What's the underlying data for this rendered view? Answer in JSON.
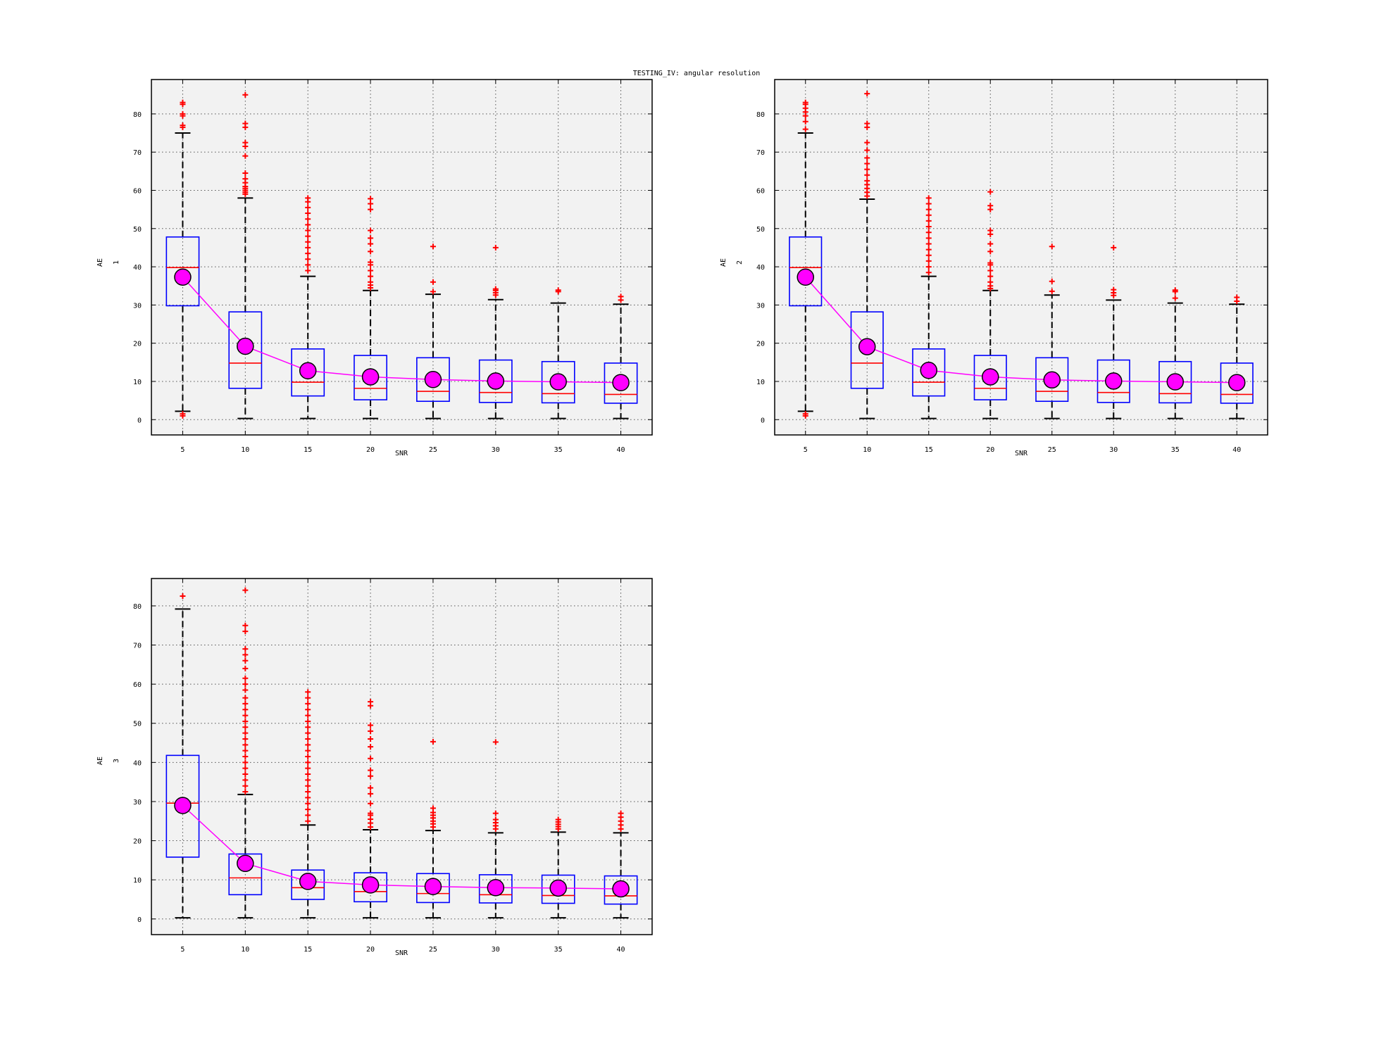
{
  "figure": {
    "title": "TESTING_IV: angular resolution",
    "colors": {
      "background": "#ffffff",
      "plot_area": "#f2f2f2",
      "box": "#0000ff",
      "median": "#ff0000",
      "outlier": "#ff0000",
      "whisker": "#000000",
      "mean_line": "#ff00ff",
      "mean_marker_fill": "#ff00ff",
      "grid": "#555555"
    }
  },
  "chart_data": [
    {
      "type": "box",
      "xlabel": "SNR",
      "ylabel": "AE",
      "ylabel_sub": "1",
      "categories": [
        "5",
        "10",
        "15",
        "20",
        "25",
        "30",
        "35",
        "40"
      ],
      "yticks": [
        "0",
        "10",
        "20",
        "30",
        "40",
        "50",
        "60",
        "70",
        "80"
      ],
      "ylim": [
        -4,
        89
      ],
      "grid": true,
      "boxes": [
        {
          "whisker_low": 2.2,
          "q1": 29.8,
          "median": 39.8,
          "q3": 47.8,
          "whisker_high": 75,
          "mean": 37.3,
          "outliers": [
            1,
            1.5,
            76.5,
            77,
            79.5,
            80,
            82.5,
            83
          ]
        },
        {
          "whisker_low": 0.3,
          "q1": 8.2,
          "median": 14.8,
          "q3": 28.2,
          "whisker_high": 58,
          "mean": 19.2,
          "outliers": [
            59,
            59.5,
            60,
            60.5,
            61,
            62,
            63,
            64.5,
            69,
            71.5,
            72.5,
            76.5,
            77.5,
            85
          ]
        },
        {
          "whisker_low": 0.3,
          "q1": 6.2,
          "median": 9.8,
          "q3": 18.5,
          "whisker_high": 37.5,
          "mean": 12.8,
          "outliers": [
            39,
            40.5,
            42,
            43.5,
            45,
            46.5,
            48,
            49.5,
            51,
            52.5,
            54,
            55.5,
            57,
            58
          ]
        },
        {
          "whisker_low": 0.3,
          "q1": 5.2,
          "median": 8.2,
          "q3": 16.8,
          "whisker_high": 33.8,
          "mean": 11.2,
          "outliers": [
            34.5,
            35.2,
            36,
            37.5,
            39,
            40.5,
            41.2,
            44,
            46,
            47.5,
            49.5,
            55,
            56.5,
            57.8
          ]
        },
        {
          "whisker_low": 0.3,
          "q1": 4.8,
          "median": 7.4,
          "q3": 16.2,
          "whisker_high": 32.8,
          "mean": 10.5,
          "outliers": [
            33.5,
            36,
            45.3
          ]
        },
        {
          "whisker_low": 0.3,
          "q1": 4.5,
          "median": 7.1,
          "q3": 15.6,
          "whisker_high": 31.4,
          "mean": 10.1,
          "outliers": [
            32.6,
            33.2,
            33.8,
            34.2,
            45
          ]
        },
        {
          "whisker_low": 0.3,
          "q1": 4.4,
          "median": 6.8,
          "q3": 15.2,
          "whisker_high": 30.5,
          "mean": 9.9,
          "outliers": [
            33.5,
            33.9
          ]
        },
        {
          "whisker_low": 0.3,
          "q1": 4.3,
          "median": 6.6,
          "q3": 14.8,
          "whisker_high": 30.2,
          "mean": 9.7,
          "outliers": [
            31.3,
            32.2
          ]
        }
      ]
    },
    {
      "type": "box",
      "xlabel": "SNR",
      "ylabel": "AE",
      "ylabel_sub": "2",
      "categories": [
        "5",
        "10",
        "15",
        "20",
        "25",
        "30",
        "35",
        "40"
      ],
      "yticks": [
        "0",
        "10",
        "20",
        "30",
        "40",
        "50",
        "60",
        "70",
        "80"
      ],
      "ylim": [
        -4,
        89
      ],
      "grid": true,
      "boxes": [
        {
          "whisker_low": 2.2,
          "q1": 29.8,
          "median": 39.8,
          "q3": 47.8,
          "whisker_high": 75,
          "mean": 37.3,
          "outliers": [
            1,
            1.5,
            76,
            78,
            79.5,
            80.5,
            81.5,
            82.5,
            83
          ]
        },
        {
          "whisker_low": 0.3,
          "q1": 8.2,
          "median": 14.8,
          "q3": 28.2,
          "whisker_high": 57.7,
          "mean": 19.1,
          "outliers": [
            58.5,
            59.5,
            60.5,
            61.5,
            62.5,
            64,
            65.5,
            67,
            68.5,
            70.5,
            72.5,
            76.5,
            77.5,
            85.3
          ]
        },
        {
          "whisker_low": 0.3,
          "q1": 6.2,
          "median": 9.8,
          "q3": 18.5,
          "whisker_high": 37.5,
          "mean": 12.9,
          "outliers": [
            38.5,
            40,
            41.5,
            43,
            44.5,
            46,
            47.5,
            49,
            50.5,
            52,
            53.5,
            55,
            56.5,
            58
          ]
        },
        {
          "whisker_low": 0.3,
          "q1": 5.2,
          "median": 8.2,
          "q3": 16.8,
          "whisker_high": 33.8,
          "mean": 11.2,
          "outliers": [
            34.3,
            35,
            36,
            37.5,
            39,
            40.5,
            41,
            44,
            46,
            48.5,
            49.5,
            55,
            56,
            59.6
          ]
        },
        {
          "whisker_low": 0.3,
          "q1": 4.8,
          "median": 7.4,
          "q3": 16.2,
          "whisker_high": 32.6,
          "mean": 10.4,
          "outliers": [
            33.6,
            36.2,
            45.3
          ]
        },
        {
          "whisker_low": 0.3,
          "q1": 4.5,
          "median": 7.1,
          "q3": 15.6,
          "whisker_high": 31.3,
          "mean": 10.1,
          "outliers": [
            32.5,
            33.2,
            34,
            45
          ]
        },
        {
          "whisker_low": 0.3,
          "q1": 4.4,
          "median": 6.8,
          "q3": 15.2,
          "whisker_high": 30.5,
          "mean": 9.9,
          "outliers": [
            31.8,
            33.5,
            33.9
          ]
        },
        {
          "whisker_low": 0.3,
          "q1": 4.3,
          "median": 6.6,
          "q3": 14.8,
          "whisker_high": 30.2,
          "mean": 9.7,
          "outliers": [
            31,
            32
          ]
        }
      ]
    },
    {
      "type": "box",
      "xlabel": "SNR",
      "ylabel": "AE",
      "ylabel_sub": "3",
      "categories": [
        "5",
        "10",
        "15",
        "20",
        "25",
        "30",
        "35",
        "40"
      ],
      "yticks": [
        "0",
        "10",
        "20",
        "30",
        "40",
        "50",
        "60",
        "70",
        "80"
      ],
      "ylim": [
        -4,
        87
      ],
      "grid": true,
      "boxes": [
        {
          "whisker_low": 0.3,
          "q1": 15.8,
          "median": 29.6,
          "q3": 41.8,
          "whisker_high": 79.2,
          "mean": 29,
          "outliers": [
            82.5
          ]
        },
        {
          "whisker_low": 0.3,
          "q1": 6.2,
          "median": 10.5,
          "q3": 16.6,
          "whisker_high": 31.8,
          "mean": 14.2,
          "outliers": [
            32.5,
            34,
            35.5,
            37,
            38.5,
            40,
            41.5,
            43,
            44.5,
            46,
            47.5,
            49,
            50.5,
            52,
            53.5,
            55,
            56.5,
            58.5,
            60,
            61.5,
            64,
            66,
            67.5,
            69,
            73.5,
            75,
            84
          ]
        },
        {
          "whisker_low": 0.3,
          "q1": 5,
          "median": 8,
          "q3": 12.5,
          "whisker_high": 24,
          "mean": 9.6,
          "outliers": [
            25,
            26.5,
            28,
            29.5,
            31,
            32.5,
            34,
            35.5,
            37,
            38.5,
            40,
            41.5,
            43,
            44.5,
            46,
            47.5,
            49,
            50.5,
            52,
            53.5,
            55,
            56.5,
            58
          ]
        },
        {
          "whisker_low": 0.3,
          "q1": 4.4,
          "median": 7,
          "q3": 11.8,
          "whisker_high": 22.8,
          "mean": 8.7,
          "outliers": [
            23.5,
            24.5,
            25.5,
            26.5,
            27,
            29.5,
            32,
            33.5,
            36.5,
            38,
            41,
            44,
            46,
            48,
            49.5,
            54.5,
            55.5
          ]
        },
        {
          "whisker_low": 0.3,
          "q1": 4.2,
          "median": 6.5,
          "q3": 11.6,
          "whisker_high": 22.6,
          "mean": 8.3,
          "outliers": [
            23.5,
            24.3,
            25,
            25.8,
            26.5,
            27.2,
            28.3,
            45.3
          ]
        },
        {
          "whisker_low": 0.3,
          "q1": 4.1,
          "median": 6.2,
          "q3": 11.3,
          "whisker_high": 22,
          "mean": 8,
          "outliers": [
            23,
            23.8,
            24.6,
            25.4,
            27,
            45.2
          ]
        },
        {
          "whisker_low": 0.3,
          "q1": 4,
          "median": 6,
          "q3": 11.2,
          "whisker_high": 22.2,
          "mean": 7.9,
          "outliers": [
            23,
            23.6,
            24.2,
            24.8,
            25.4
          ]
        },
        {
          "whisker_low": 0.3,
          "q1": 3.8,
          "median": 5.9,
          "q3": 11,
          "whisker_high": 22,
          "mean": 7.7,
          "outliers": [
            23,
            24,
            25,
            26,
            27
          ]
        }
      ]
    }
  ]
}
